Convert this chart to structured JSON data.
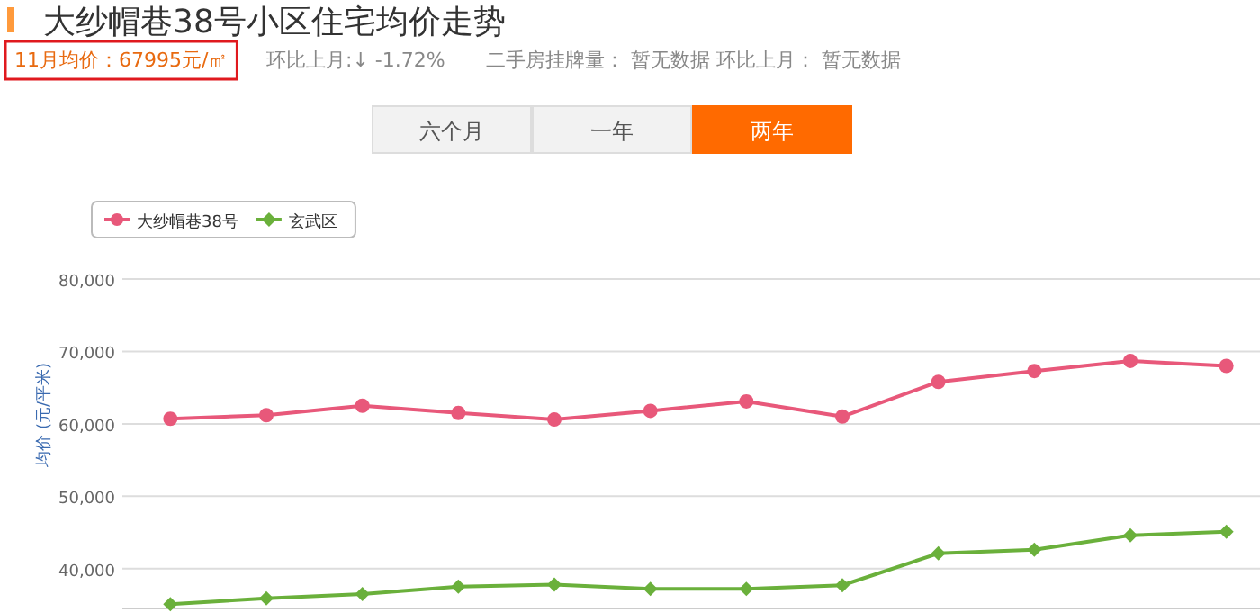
{
  "chart_data": {
    "type": "line",
    "title": "大纱帽巷38号小区住宅均价走势",
    "ylabel": "均价 (元/平米)",
    "annotations": [
      "11月均价：67995元/㎡",
      "环比上月:↓ -1.72%",
      "二手房挂牌量： 暂无数据 环比上月： 暂无数据",
      "六个月",
      "一年",
      "两年"
    ],
    "categories": [
      null,
      null,
      null,
      null,
      null,
      null,
      null,
      null,
      null,
      null,
      null,
      null
    ],
    "series": [
      {
        "name": "大纱帽巷38号",
        "color": "#e8587a",
        "marker": "circle",
        "values": [
          60700,
          61200,
          62500,
          61500,
          60600,
          61800,
          63100,
          61000,
          65800,
          67300,
          68700,
          68000
        ]
      },
      {
        "name": "玄武区",
        "color": "#6ab03b",
        "marker": "diamond",
        "values": [
          35100,
          35900,
          36500,
          37500,
          37800,
          37200,
          37200,
          37700,
          42100,
          42600,
          44600,
          45100
        ]
      }
    ],
    "ylim": [
      34500,
      80000
    ],
    "yticks": [
      {
        "value": 40000,
        "label": "40,000"
      },
      {
        "value": 50000,
        "label": "50,000"
      },
      {
        "value": 60000,
        "label": "60,000"
      },
      {
        "value": 70000,
        "label": "70,000"
      },
      {
        "value": 80000,
        "label": "80,000"
      }
    ],
    "grid": "y",
    "legend": "top left"
  }
}
